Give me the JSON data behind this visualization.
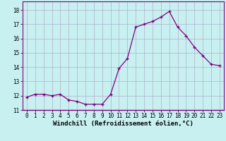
{
  "x_data": [
    0,
    1,
    2,
    3,
    4,
    5,
    6,
    7,
    8,
    9,
    10,
    11,
    12,
    13,
    14,
    15,
    16,
    17,
    18,
    19,
    20,
    21,
    22,
    23
  ],
  "y_data": [
    11.9,
    12.1,
    12.1,
    12.0,
    12.1,
    11.7,
    11.6,
    11.4,
    11.4,
    11.4,
    12.1,
    13.9,
    14.6,
    16.8,
    17.0,
    17.2,
    17.5,
    17.9,
    16.8,
    16.2,
    15.4,
    14.8,
    14.2,
    14.1
  ],
  "line_color": "#800080",
  "marker": "+",
  "background_color": "#c8f0f0",
  "grid_color": "#b0b0cc",
  "xlabel": "Windchill (Refroidissement éolien,°C)",
  "xlim": [
    -0.5,
    23.5
  ],
  "ylim": [
    11.0,
    18.6
  ],
  "yticks": [
    11,
    12,
    13,
    14,
    15,
    16,
    17,
    18
  ],
  "xticks": [
    0,
    1,
    2,
    3,
    4,
    5,
    6,
    7,
    8,
    9,
    10,
    11,
    12,
    13,
    14,
    15,
    16,
    17,
    18,
    19,
    20,
    21,
    22,
    23
  ],
  "tick_fontsize": 5.5,
  "xlabel_fontsize": 6.5,
  "markersize": 3,
  "linewidth": 0.9
}
